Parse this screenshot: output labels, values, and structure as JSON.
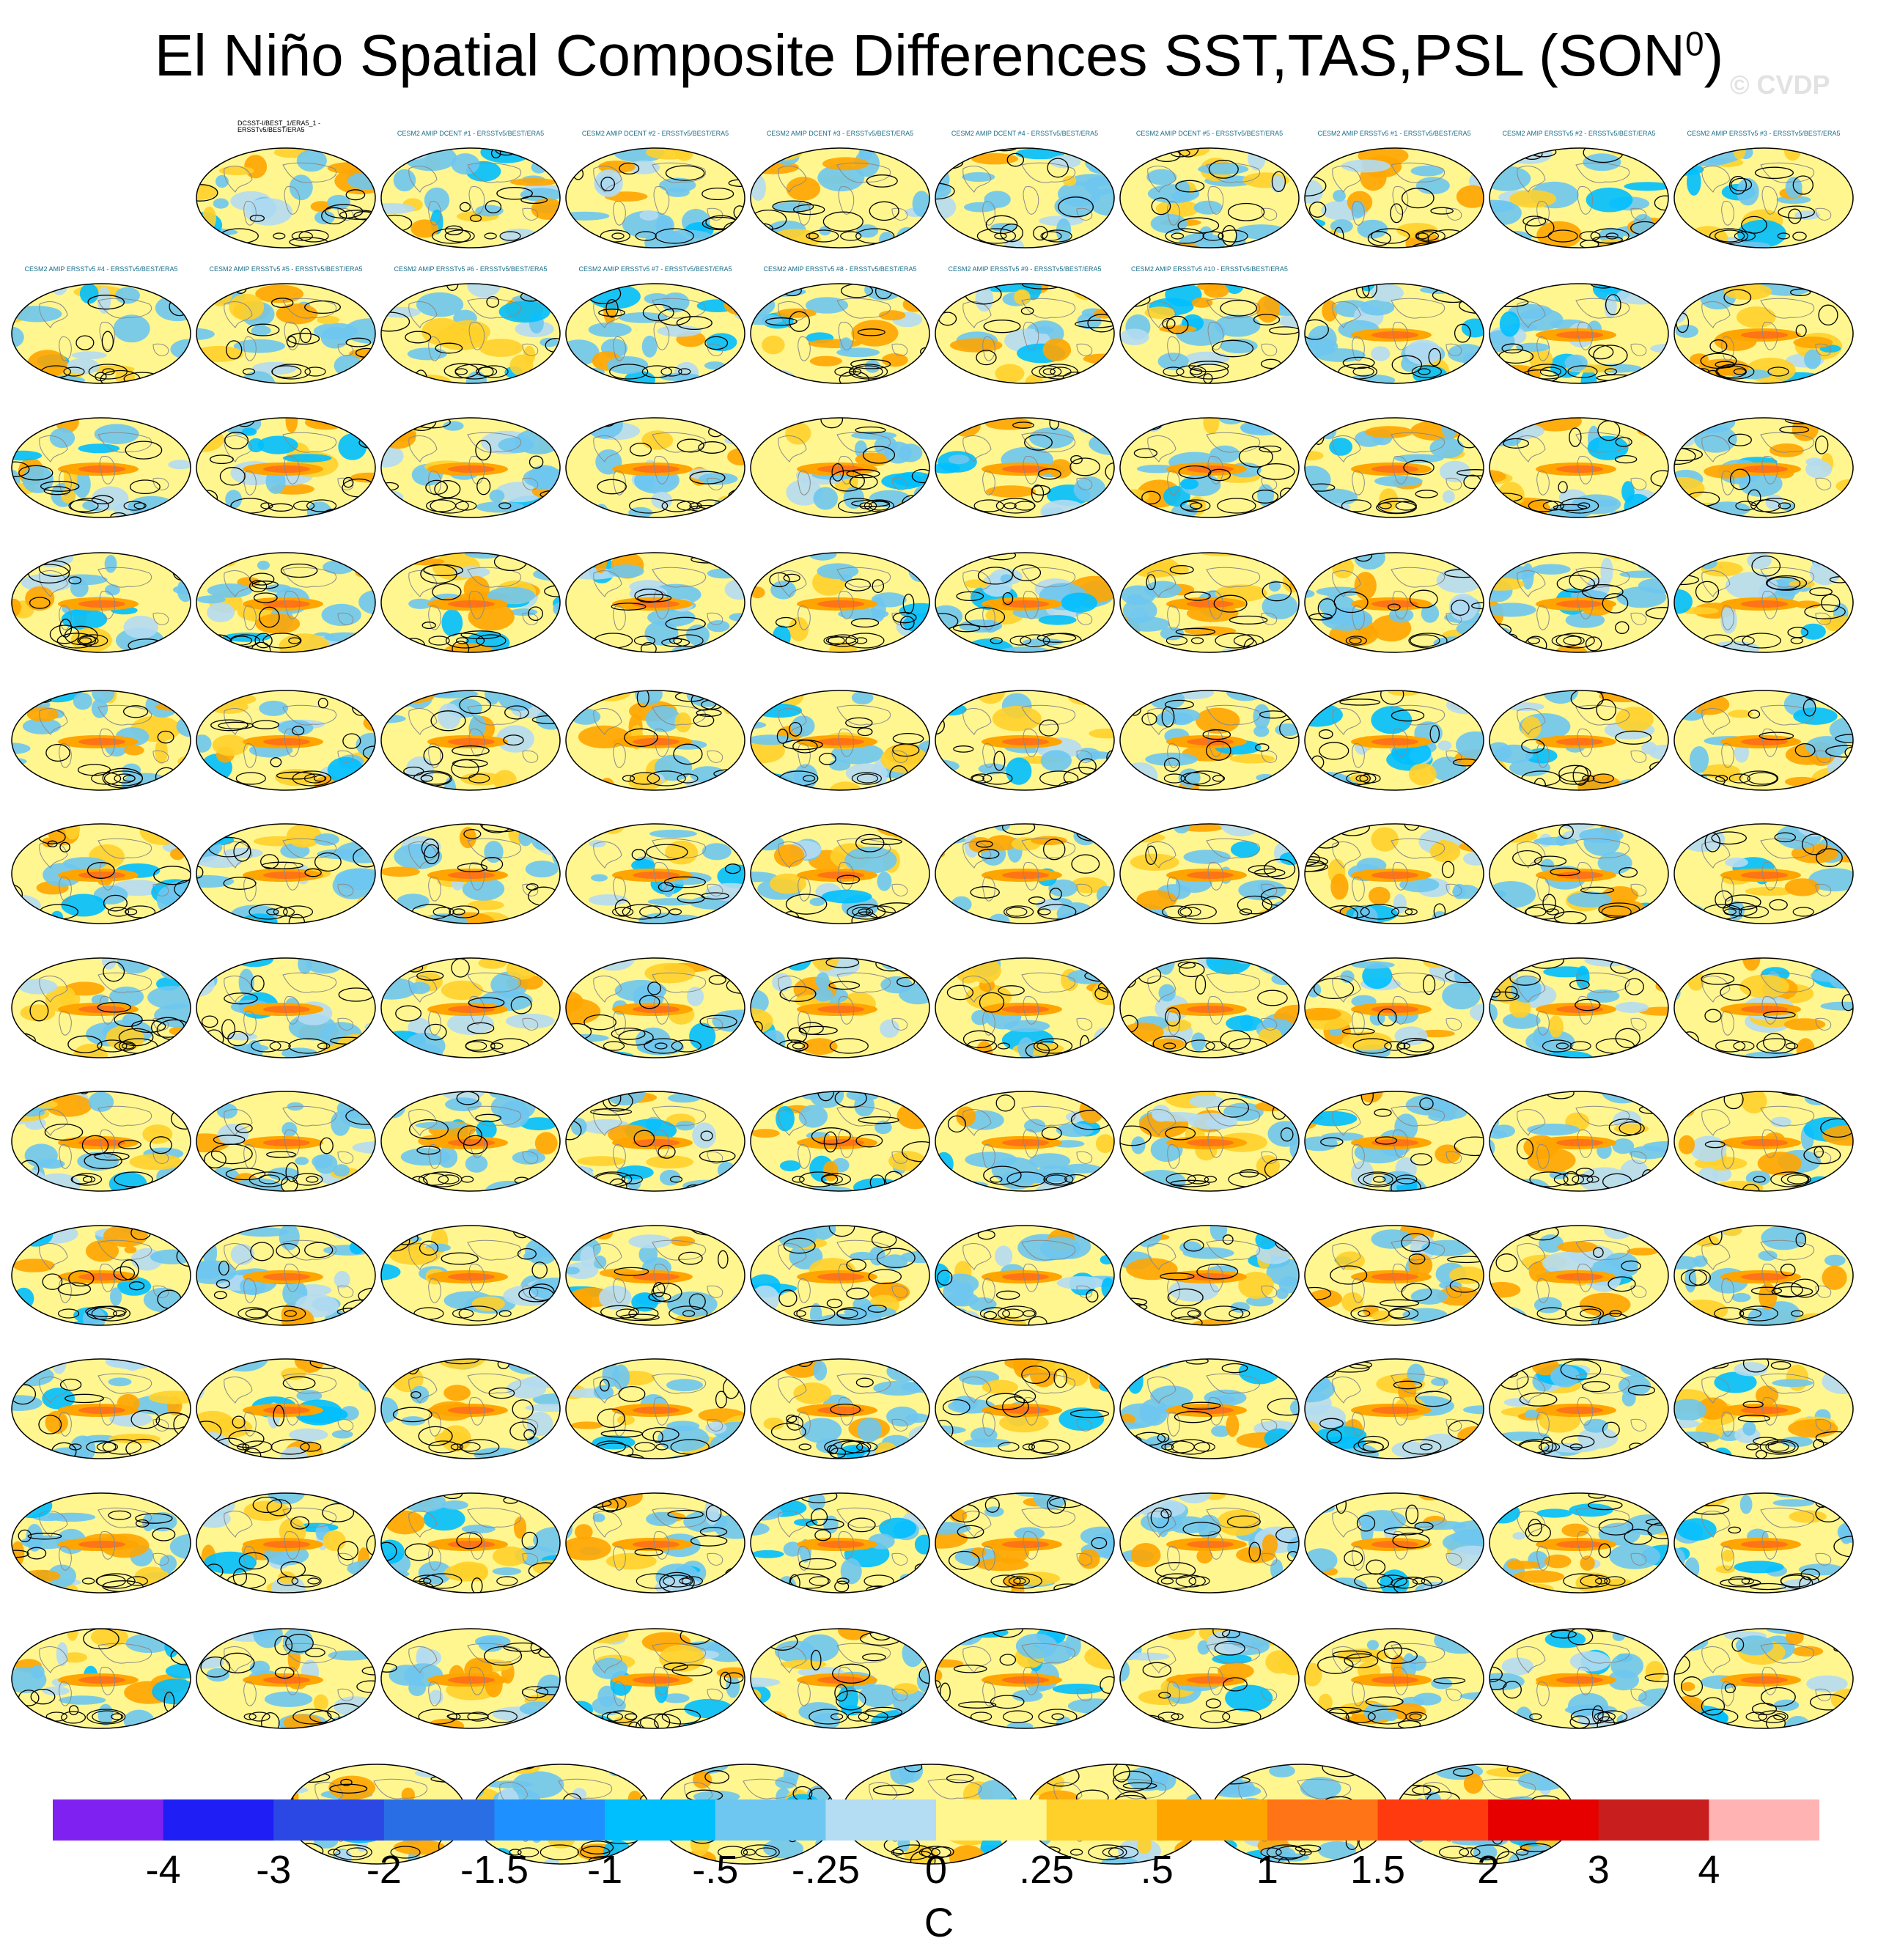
{
  "title": {
    "main": "El Niño Spatial Composite Differences SST,TAS,PSL (SON",
    "superscript": "0",
    "close": ")"
  },
  "watermark": "© CVDP",
  "obs_label": "DCSST-I/BEST_1/ERA5_1 - ERSSTv5/BEST/ERA5",
  "panel_labels": [
    "CESM2 AMIP DCENT #1 - ERSSTv5/BEST/ERA5",
    "CESM2 AMIP DCENT #2 - ERSSTv5/BEST/ERA5",
    "CESM2 AMIP DCENT #3 - ERSSTv5/BEST/ERA5",
    "CESM2 AMIP DCENT #4 - ERSSTv5/BEST/ERA5",
    "CESM2 AMIP DCENT #5 - ERSSTv5/BEST/ERA5",
    "CESM2 AMIP ERSSTv5 #1 - ERSSTv5/BEST/ERA5",
    "CESM2 AMIP ERSSTv5 #2 - ERSSTv5/BEST/ERA5",
    "CESM2 AMIP ERSSTv5 #3 - ERSSTv5/BEST/ERA5",
    "CESM2 AMIP ERSSTv5 #4 - ERSSTv5/BEST/ERA5",
    "CESM2 AMIP ERSSTv5 #5 - ERSSTv5/BEST/ERA5",
    "CESM2 AMIP ERSSTv5 #6 - ERSSTv5/BEST/ERA5",
    "CESM2 AMIP ERSSTv5 #7 - ERSSTv5/BEST/ERA5",
    "CESM2 AMIP ERSSTv5 #8 - ERSSTv5/BEST/ERA5",
    "CESM2 AMIP ERSSTv5 #9 - ERSSTv5/BEST/ERA5",
    "CESM2 AMIP ERSSTv5 #10 - ERSSTv5/BEST/ERA5"
  ],
  "colorbar": {
    "colors": [
      "#7f22f1",
      "#1e1ef5",
      "#2b48e4",
      "#2a6ee6",
      "#1e90ff",
      "#00bfff",
      "#6ec7f0",
      "#b4dcf2",
      "#fff68f",
      "#ffd02a",
      "#ffa500",
      "#ff7416",
      "#ff3a0f",
      "#e60000",
      "#c81e1e",
      "#ffb3b3"
    ],
    "labels": [
      "-4",
      "-3",
      "-2",
      "-1.5",
      "-1",
      "-.5",
      "-.25",
      "0",
      ".25",
      ".5",
      "1",
      "1.5",
      "2",
      "3",
      "4"
    ],
    "units": "C"
  }
}
